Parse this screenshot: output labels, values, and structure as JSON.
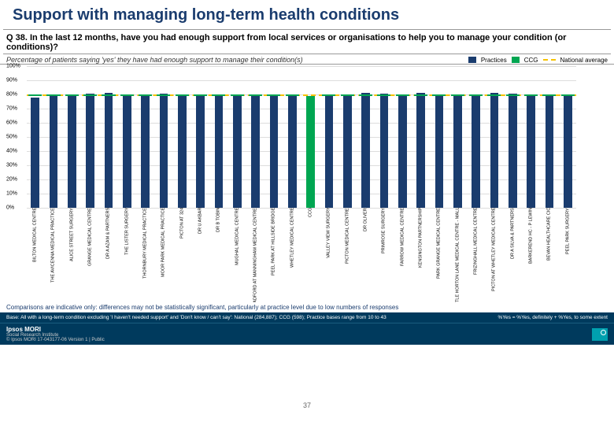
{
  "title": "Support with managing long-term health conditions",
  "question": "Q 38. In the last 12 months, have you had enough support from local services or organisations to help you to manage your condition (or conditions)?",
  "subtitle": "Percentage of patients saying 'yes' they have had enough support to manage their condition(s)",
  "legend": {
    "practices": "Practices",
    "ccg": "CCG",
    "national": "National average"
  },
  "chart": {
    "ylim": [
      0,
      100
    ],
    "ytick_step": 10,
    "national_avg": 80,
    "ccg_avg": 79,
    "practice_color": "#1a3c6e",
    "ccg_color": "#00a651",
    "national_color": "#f6c200",
    "grid_color": "#dddddd",
    "practices": [
      {
        "name": "BILTON MEDICAL CENTRE",
        "value": 78
      },
      {
        "name": "THE AVICENNA MEDICAL PRACTICE",
        "value": 80
      },
      {
        "name": "ALICE STREET SURGERY",
        "value": 79
      },
      {
        "name": "GRANGE MEDICAL CENTRE",
        "value": 80.5
      },
      {
        "name": "DR A AZAM & PARTNERS",
        "value": 81
      },
      {
        "name": "THE LISTER SURGERY",
        "value": 79.5
      },
      {
        "name": "THORNBURY MEDICAL PRACTICE",
        "value": 80
      },
      {
        "name": "MOOR PARK MEDICAL PRACTICE",
        "value": 80.5
      },
      {
        "name": "PICTON AT 324",
        "value": 80
      },
      {
        "name": "DR U AKBAR",
        "value": 79
      },
      {
        "name": "DR B TOBIN",
        "value": 80
      },
      {
        "name": "MUGHAL MEDICAL CENTRE",
        "value": 79
      },
      {
        "name": "LCD BRADFORD AT MANNINGHAM MEDICAL CENTRE",
        "value": 80
      },
      {
        "name": "PEEL PARK AT HILLSIDE BRIDGE",
        "value": 79.5
      },
      {
        "name": "WHETLEY MEDICAL CENTRE",
        "value": 80
      },
      {
        "name": "CCG",
        "value": 79,
        "ccg": true
      },
      {
        "name": "VALLEY VIEW SURGERY",
        "value": 79
      },
      {
        "name": "PICTON MEDICAL CENTRE",
        "value": 80
      },
      {
        "name": "DR OLIVER",
        "value": 81
      },
      {
        "name": "PRIMROSE SURGERY",
        "value": 80.5
      },
      {
        "name": "FARROW MEDICAL CENTRE",
        "value": 80
      },
      {
        "name": "KENSINGTON PARTNERSHIP",
        "value": 81
      },
      {
        "name": "PARK GRANGE MEDICAL CENTRE",
        "value": 80
      },
      {
        "name": "LITTLE HORTON LANE MEDICAL CENTRE - MALL",
        "value": 79.5
      },
      {
        "name": "FRIZINGHALL MEDICAL CENTRE",
        "value": 80
      },
      {
        "name": "PICTON AT WHETLEY MEDICAL CENTRE",
        "value": 81
      },
      {
        "name": "DR A SILVA & PARTNERS",
        "value": 80.5
      },
      {
        "name": "BARKEREND HC - P LEWIN",
        "value": 80
      },
      {
        "name": "BEVAN HEALTHCARE CIC",
        "value": 79
      },
      {
        "name": "PEEL PARK SURGERY",
        "value": 80
      }
    ]
  },
  "note": "Comparisons are indicative only: differences may not be statistically significant, particularly at practice level due to low numbers of responses",
  "footer": {
    "base": "Base: All with a long-term condition excluding 'I haven't needed support' and 'Don't know / can't say': National (284,887); CCG (598); Practice bases range from 10 to 43",
    "yesdef": "%Yes = %Yes, definitely + %Yes, to some extent",
    "copyright": "© Ipsos MORI    17-043177-06 Version 1 | Public",
    "brand": "Ipsos MORI",
    "brand2": "Social Research Institute",
    "slide": "37"
  }
}
